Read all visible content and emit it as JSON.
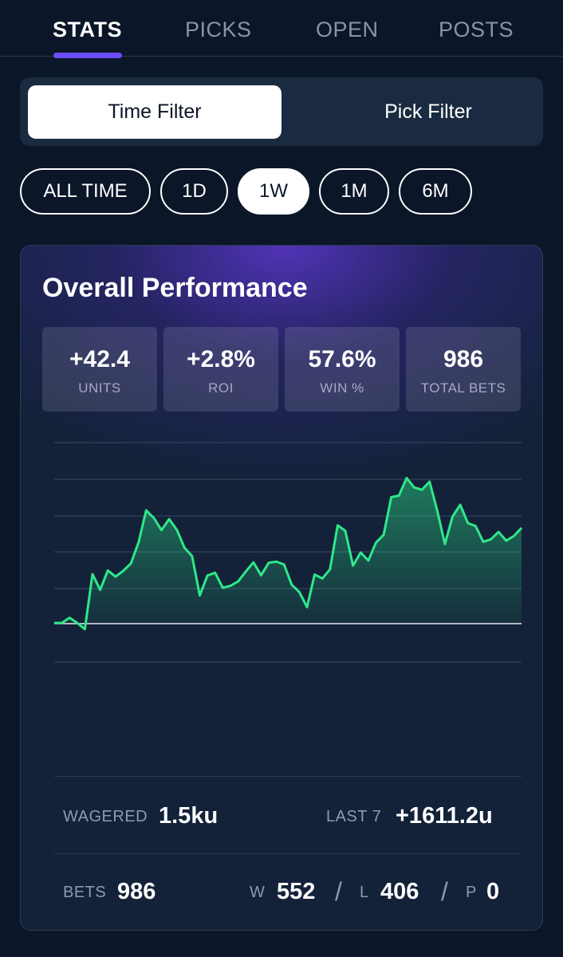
{
  "tabs": [
    {
      "label": "STATS",
      "active": true
    },
    {
      "label": "PICKS",
      "active": false
    },
    {
      "label": "OPEN",
      "active": false
    },
    {
      "label": "POSTS",
      "active": false
    }
  ],
  "filter_toggle": {
    "active": "Time Filter",
    "inactive": "Pick Filter"
  },
  "time_ranges": [
    {
      "label": "ALL TIME",
      "active": false
    },
    {
      "label": "1D",
      "active": false
    },
    {
      "label": "1W",
      "active": true
    },
    {
      "label": "1M",
      "active": false
    },
    {
      "label": "6M",
      "active": false
    }
  ],
  "performance": {
    "title": "Overall Performance",
    "stats": [
      {
        "value": "+42.4",
        "label": "UNITS"
      },
      {
        "value": "+2.8%",
        "label": "ROI"
      },
      {
        "value": "57.6%",
        "label": "WIN %"
      },
      {
        "value": "986",
        "label": "TOTAL BETS"
      }
    ]
  },
  "chart_data": {
    "type": "area",
    "color": "#2ee88a",
    "values": [
      0.2,
      0.2,
      1.6,
      0.2,
      -1.5,
      13.5,
      9.2,
      14.5,
      12.8,
      14.4,
      16.4,
      22.1,
      30.9,
      28.8,
      25.5,
      28.5,
      25.6,
      20.7,
      18.4,
      7.7,
      13.1,
      13.9,
      9.8,
      10.3,
      11.5,
      14.2,
      16.7,
      13.2,
      16.6,
      16.9,
      16.1,
      10.6,
      8.6,
      4.5,
      13.4,
      12.3,
      14.8,
      26.8,
      25.3,
      15.8,
      19.4,
      17.2,
      22.1,
      24.2,
      34.5,
      34.9,
      39.7,
      37.1,
      36.5,
      38.7,
      30.8,
      21.7,
      29.2,
      32.4,
      27.4,
      26.6,
      22.3,
      23.0,
      25.0,
      22.6,
      23.9,
      26.1
    ]
  },
  "summary": {
    "wagered_label": "WAGERED",
    "wagered_value": "1.5ku",
    "last_label": "LAST 7",
    "last_value": "+1611.2u",
    "bets_label": "BETS",
    "bets_value": "986",
    "w_label": "W",
    "w_value": "552",
    "l_label": "L",
    "l_value": "406",
    "p_label": "P",
    "p_value": "0",
    "separator": "/"
  }
}
